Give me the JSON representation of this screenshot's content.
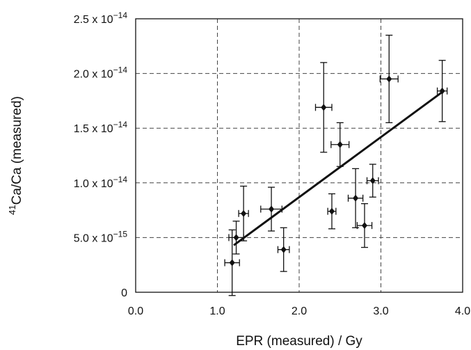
{
  "chart_data": {
    "type": "scatter",
    "xlabel": "EPR (measured) / Gy",
    "ylabel": {
      "sup": "41",
      "main": "Ca/Ca (measured)"
    },
    "xlim": [
      0,
      4
    ],
    "ylim": [
      0,
      2.5e-14
    ],
    "x_ticks": [
      {
        "value": 0,
        "label": "0.0"
      },
      {
        "value": 1,
        "label": "1.0"
      },
      {
        "value": 2,
        "label": "2.0"
      },
      {
        "value": 3,
        "label": "3.0"
      },
      {
        "value": 4,
        "label": "4.0"
      }
    ],
    "y_ticks": [
      {
        "value": 0,
        "mant": "0",
        "exp": ""
      },
      {
        "value": 5e-15,
        "mant": "5.0 x 10",
        "exp": "−15"
      },
      {
        "value": 1e-14,
        "mant": "1.0 x 10",
        "exp": "−14"
      },
      {
        "value": 1.5e-14,
        "mant": "1.5 x 10",
        "exp": "−14"
      },
      {
        "value": 2e-14,
        "mant": "2.0 x 10",
        "exp": "−14"
      },
      {
        "value": 2.5e-14,
        "mant": "2.5 x 10",
        "exp": "−14"
      }
    ],
    "grid": true,
    "points": [
      {
        "x": 1.18,
        "y": 2.7e-15,
        "xerr": 0.09,
        "yerr": 3e-15
      },
      {
        "x": 1.23,
        "y": 5e-15,
        "xerr": 0.09,
        "yerr": 1.5e-15
      },
      {
        "x": 1.32,
        "y": 7.2e-15,
        "xerr": 0.06,
        "yerr": 2.5e-15
      },
      {
        "x": 1.66,
        "y": 7.6e-15,
        "xerr": 0.13,
        "yerr": 2e-15
      },
      {
        "x": 1.81,
        "y": 3.9e-15,
        "xerr": 0.07,
        "yerr": 2e-15
      },
      {
        "x": 2.3,
        "y": 1.69e-14,
        "xerr": 0.1,
        "yerr": 4.1e-15
      },
      {
        "x": 2.4,
        "y": 7.4e-15,
        "xerr": 0.05,
        "yerr": 1.6e-15
      },
      {
        "x": 2.5,
        "y": 1.35e-14,
        "xerr": 0.11,
        "yerr": 2e-15
      },
      {
        "x": 2.69,
        "y": 8.6e-15,
        "xerr": 0.09,
        "yerr": 2.7e-15
      },
      {
        "x": 2.8,
        "y": 6.1e-15,
        "xerr": 0.09,
        "yerr": 2e-15
      },
      {
        "x": 2.9,
        "y": 1.02e-14,
        "xerr": 0.07,
        "yerr": 1.5e-15
      },
      {
        "x": 3.1,
        "y": 1.95e-14,
        "xerr": 0.11,
        "yerr": 4e-15
      },
      {
        "x": 3.75,
        "y": 1.84e-14,
        "xerr": 0.06,
        "yerr": 2.8e-15
      }
    ],
    "fit_line": {
      "x": [
        1.2,
        3.75
      ],
      "y": [
        4.3e-15,
        1.83e-14
      ]
    }
  }
}
